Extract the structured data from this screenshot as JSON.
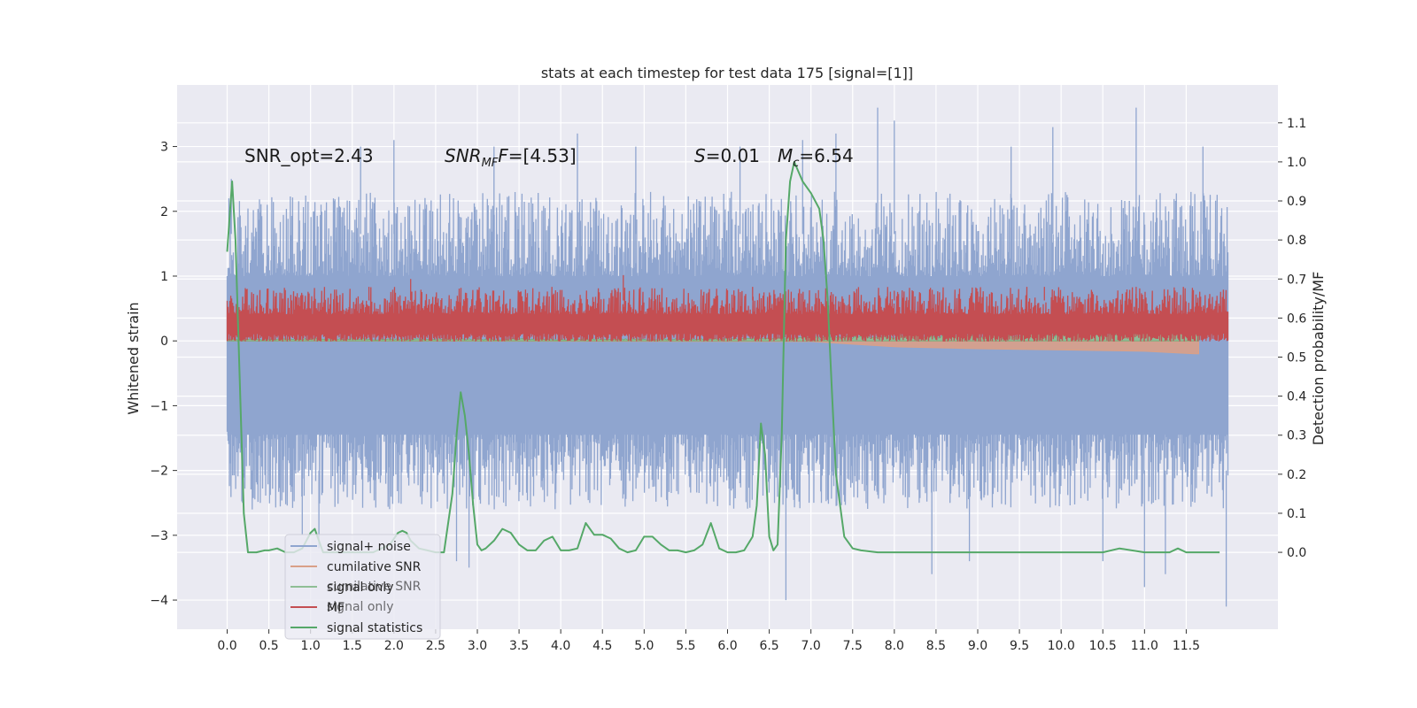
{
  "chart_data": {
    "type": "line",
    "title": "stats at each timestep for test data 175 [signal=[1]]",
    "xlabel": "",
    "ylabel": "Whitened strain",
    "y2label": "Detection probability/MF",
    "xlim": [
      -0.6,
      12.6
    ],
    "ylim": [
      -4.45,
      3.95
    ],
    "y2lim": [
      -0.197,
      1.197
    ],
    "xticks": [
      "0.0",
      "0.5",
      "1.0",
      "1.5",
      "2.0",
      "2.5",
      "3.0",
      "3.5",
      "4.0",
      "4.5",
      "5.0",
      "5.5",
      "6.0",
      "6.5",
      "7.0",
      "7.5",
      "8.0",
      "8.5",
      "9.0",
      "9.5",
      "10.0",
      "10.5",
      "11.0",
      "11.5"
    ],
    "yticks": [
      "3",
      "2",
      "1",
      "0",
      "−1",
      "−2",
      "−3",
      "−4"
    ],
    "y2ticks": [
      "1.1",
      "1.0",
      "0.9",
      "0.8",
      "0.7",
      "0.6",
      "0.5",
      "0.4",
      "0.3",
      "0.2",
      "0.1",
      "0.0"
    ],
    "grid": true,
    "legend_position": "lower-left",
    "annotations": {
      "snr_opt": "SNR_opt=2.43",
      "snr_mf_italic": "SNR",
      "snr_mf_sub": "MF",
      "snr_mf_value": "=[4.53]",
      "s_italic": "S",
      "s_value": "=0.01",
      "mc_italic": "M",
      "mc_sub": "c",
      "mc_value": "=6.54"
    },
    "legend": [
      {
        "label": "signal+ noise",
        "color": "#8fa5cf"
      },
      {
        "label": "cumilative SNR",
        "color": "#d9a088"
      },
      {
        "label": "signal only",
        "color": "#8fbe95"
      },
      {
        "label": "MF",
        "color": "#c44e52"
      },
      {
        "label": "signal statistics",
        "color": "#55a868"
      }
    ],
    "legend_ghost": [
      {
        "label": "cumilative SNR"
      },
      {
        "label": "signal only"
      }
    ],
    "series": [
      {
        "name": "signal+ noise",
        "kind": "noise-band",
        "color": "#8fa5cf",
        "x_start": 0.0,
        "x_end": 12.0,
        "upper_typical": [
          1.0,
          2.3
        ],
        "lower_typical": [
          -1.4,
          -2.6
        ],
        "spikes": [
          {
            "x": 0.02,
            "y": 2.2
          },
          {
            "x": 0.05,
            "y": 2.5
          },
          {
            "x": 0.3,
            "y": -2.6
          },
          {
            "x": 0.9,
            "y": -3.0
          },
          {
            "x": 1.1,
            "y": -3.2
          },
          {
            "x": 1.6,
            "y": 3.0
          },
          {
            "x": 2.0,
            "y": 3.1
          },
          {
            "x": 2.75,
            "y": -3.4
          },
          {
            "x": 2.9,
            "y": -3.5
          },
          {
            "x": 3.2,
            "y": 3.0
          },
          {
            "x": 4.2,
            "y": 3.2
          },
          {
            "x": 4.9,
            "y": 3.0
          },
          {
            "x": 6.15,
            "y": 3.0
          },
          {
            "x": 6.7,
            "y": -4.0
          },
          {
            "x": 6.9,
            "y": 3.1
          },
          {
            "x": 7.3,
            "y": 3.2
          },
          {
            "x": 7.8,
            "y": 3.6
          },
          {
            "x": 8.0,
            "y": 3.4
          },
          {
            "x": 8.45,
            "y": -3.6
          },
          {
            "x": 8.9,
            "y": -3.4
          },
          {
            "x": 9.4,
            "y": 3.0
          },
          {
            "x": 9.9,
            "y": 3.3
          },
          {
            "x": 10.5,
            "y": -3.4
          },
          {
            "x": 10.9,
            "y": 3.6
          },
          {
            "x": 11.0,
            "y": -3.8
          },
          {
            "x": 11.25,
            "y": -3.6
          },
          {
            "x": 11.7,
            "y": 3.0
          },
          {
            "x": 11.98,
            "y": -4.1
          }
        ]
      },
      {
        "name": "cumilative SNR",
        "kind": "area-below",
        "color": "#d9a088",
        "x": [
          0.0,
          7.0,
          7.5,
          8.0,
          9.0,
          10.0,
          11.0,
          11.6,
          11.65
        ],
        "y": [
          0.0,
          -0.01,
          -0.05,
          -0.09,
          -0.12,
          -0.14,
          -0.16,
          -0.2,
          -0.2
        ]
      },
      {
        "name": "signal only",
        "kind": "area-above",
        "color": "#8fbe95",
        "x": [
          0.0,
          6.0,
          7.0,
          8.0,
          9.0,
          10.0,
          11.0,
          11.65
        ],
        "y": [
          0.03,
          0.03,
          0.06,
          0.08,
          0.1,
          0.12,
          0.16,
          0.2
        ]
      },
      {
        "name": "MF",
        "kind": "noise-band",
        "color": "#c44e52",
        "axis": "y2",
        "x_start": 0.0,
        "x_end": 12.0,
        "upper_typical": [
          0.61,
          0.68
        ],
        "lower_typical": [
          0.54,
          0.56
        ],
        "spikes": [
          {
            "x": 1.7,
            "y": 0.68
          },
          {
            "x": 2.2,
            "y": 0.7
          },
          {
            "x": 4.75,
            "y": 0.71
          },
          {
            "x": 6.3,
            "y": 0.68
          },
          {
            "x": 8.0,
            "y": 0.67
          },
          {
            "x": 9.8,
            "y": 0.68
          },
          {
            "x": 10.9,
            "y": 0.68
          }
        ]
      },
      {
        "name": "signal statistics",
        "kind": "line",
        "axis": "y2",
        "color": "#55a868",
        "x": [
          0.0,
          0.06,
          0.1,
          0.15,
          0.2,
          0.25,
          0.35,
          0.45,
          0.5,
          0.6,
          0.7,
          0.8,
          0.9,
          1.0,
          1.05,
          1.1,
          1.15,
          1.25,
          1.35,
          1.45,
          1.55,
          1.65,
          1.75,
          1.85,
          1.95,
          2.05,
          2.1,
          2.15,
          2.2,
          2.3,
          2.4,
          2.5,
          2.6,
          2.7,
          2.75,
          2.8,
          2.85,
          2.9,
          2.95,
          3.0,
          3.05,
          3.1,
          3.2,
          3.3,
          3.4,
          3.5,
          3.6,
          3.7,
          3.8,
          3.9,
          4.0,
          4.1,
          4.2,
          4.3,
          4.4,
          4.5,
          4.6,
          4.7,
          4.8,
          4.9,
          5.0,
          5.1,
          5.2,
          5.3,
          5.4,
          5.5,
          5.6,
          5.7,
          5.8,
          5.9,
          6.0,
          6.1,
          6.2,
          6.3,
          6.35,
          6.4,
          6.45,
          6.5,
          6.55,
          6.6,
          6.65,
          6.7,
          6.75,
          6.8,
          6.9,
          7.0,
          7.1,
          7.15,
          7.2,
          7.25,
          7.3,
          7.4,
          7.5,
          7.6,
          7.8,
          8.0,
          8.5,
          9.0,
          9.2,
          9.5,
          10.0,
          10.3,
          10.5,
          10.7,
          11.0,
          11.3,
          11.4,
          11.5,
          11.7,
          11.9
        ],
        "y": [
          0.77,
          0.95,
          0.8,
          0.45,
          0.1,
          0.0,
          0.0,
          0.005,
          0.005,
          0.01,
          0.0,
          0.0,
          0.01,
          0.05,
          0.06,
          0.03,
          0.0,
          0.0,
          0.0,
          0.0,
          0.0,
          0.0,
          0.0,
          0.01,
          0.02,
          0.05,
          0.055,
          0.05,
          0.03,
          0.01,
          0.005,
          0.0,
          0.0,
          0.15,
          0.3,
          0.41,
          0.35,
          0.25,
          0.12,
          0.02,
          0.005,
          0.01,
          0.03,
          0.06,
          0.05,
          0.02,
          0.005,
          0.005,
          0.03,
          0.04,
          0.005,
          0.005,
          0.01,
          0.075,
          0.045,
          0.045,
          0.035,
          0.01,
          0.0,
          0.005,
          0.04,
          0.04,
          0.02,
          0.005,
          0.005,
          0.0,
          0.005,
          0.02,
          0.075,
          0.01,
          0.0,
          0.0,
          0.005,
          0.04,
          0.12,
          0.33,
          0.25,
          0.04,
          0.005,
          0.02,
          0.3,
          0.8,
          0.95,
          1.0,
          0.95,
          0.92,
          0.88,
          0.8,
          0.65,
          0.42,
          0.2,
          0.04,
          0.01,
          0.005,
          0.0,
          0.0,
          0.0,
          0.0,
          0.0,
          0.0,
          0.0,
          0.0,
          0.0,
          0.01,
          0.0,
          0.0,
          0.01,
          0.0,
          0.0,
          0.0
        ]
      }
    ]
  }
}
